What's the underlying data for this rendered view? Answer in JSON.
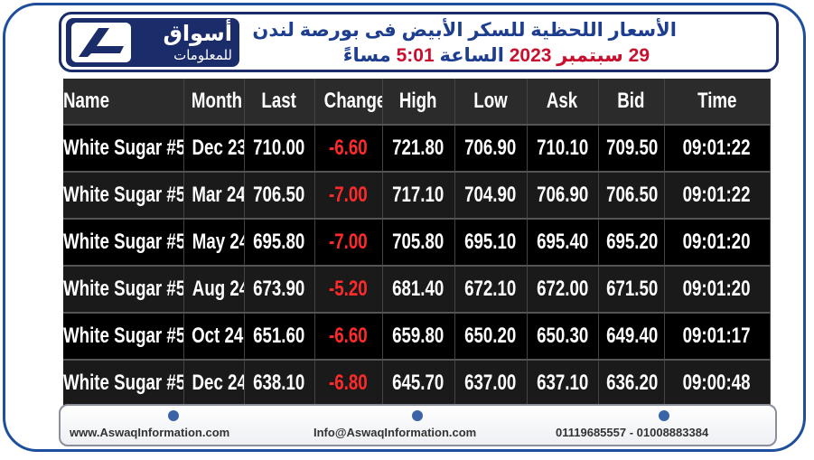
{
  "header": {
    "logo": {
      "name": "أسواق",
      "tagline": "للمعلومات"
    },
    "title": "الأسعار اللحظية للسكر الأبيض فى بورصة لندن",
    "date": "29 سبتمبر 2023",
    "time_word": "الساعة",
    "time": "5:01",
    "period": "مساءً"
  },
  "table": {
    "columns": [
      "Name",
      "Month",
      "Last",
      "Change",
      "High",
      "Low",
      "Ask",
      "Bid",
      "Time"
    ],
    "rows": [
      [
        "White Sugar #5",
        "Dec 23",
        "710.00",
        "-6.60",
        "721.80",
        "706.90",
        "710.10",
        "709.50",
        "09:01:22"
      ],
      [
        "White Sugar #5",
        "Mar 24",
        "706.50",
        "-7.00",
        "717.10",
        "704.90",
        "706.90",
        "706.50",
        "09:01:22"
      ],
      [
        "White Sugar #5",
        "May 24",
        "695.80",
        "-7.00",
        "705.80",
        "695.10",
        "695.40",
        "695.20",
        "09:01:20"
      ],
      [
        "White Sugar #5",
        "Aug 24",
        "673.90",
        "-5.20",
        "681.40",
        "672.10",
        "672.00",
        "671.50",
        "09:01:20"
      ],
      [
        "White Sugar #5",
        "Oct 24",
        "651.60",
        "-6.60",
        "659.80",
        "650.20",
        "650.30",
        "649.40",
        "09:01:17"
      ],
      [
        "White Sugar #5",
        "Dec 24",
        "638.10",
        "-6.80",
        "645.70",
        "637.00",
        "637.10",
        "636.20",
        "09:00:48"
      ]
    ]
  },
  "footer": {
    "website": "www.AswaqInformation.com",
    "email": "Info@AswaqInformation.com",
    "phones": "01119685557 - 01008883384"
  }
}
